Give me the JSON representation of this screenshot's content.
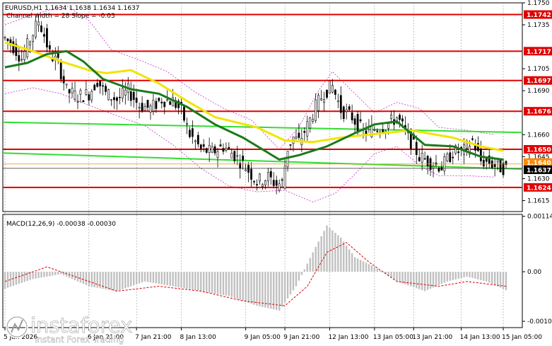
{
  "header": {
    "symbol_line": "EURUSD,H1  1.1634 1.1638 1.1634 1.1637",
    "channel_line": "Channel width = 28 Slope = -0.03"
  },
  "macd": {
    "label": "MACD(12,26,9) -0.00038 -0.00030",
    "ticks": [
      "0.00114",
      "0.00",
      "-0.00102"
    ]
  },
  "watermark": {
    "brand": "instaforex",
    "tagline": "Instant Forex Trading"
  },
  "colors": {
    "background": "#ffffff",
    "candle": "#000000",
    "level_line": "#e00000",
    "ma_yellow": "#f2e400",
    "ma_green": "#1a7a1a",
    "channel": "#33dd33",
    "bollinger": "#cc44cc",
    "macd_hist": "#c0c0c0",
    "macd_signal": "#dd0000",
    "current_price_label": "#000000"
  },
  "chart_data": {
    "type": "candlestick",
    "symbol": "EURUSD",
    "timeframe": "H1",
    "price_axis": {
      "ylim": [
        1.16075,
        1.175
      ],
      "ticks": [
        "1.1750",
        "1.1735",
        "1.1705",
        "1.1690",
        "1.1660",
        "1.1645",
        "1.1630",
        "1.1615"
      ]
    },
    "time_labels": [
      "5 Jan 2026",
      "6 Jan 21:00",
      "7 Jan 21:00",
      "8 Jan 13:00",
      "9 Jan 05:00",
      "9 Jan 21:00",
      "12 Jan 13:00",
      "13 Jan 05:00",
      "13 Jan 21:00",
      "14 Jan 13:00",
      "15 Jan 05:00"
    ],
    "time_label_index": [
      0,
      30,
      47,
      63,
      86,
      100,
      116,
      132,
      146,
      163,
      178
    ],
    "bar_count": 180,
    "levels": [
      {
        "label": "1.1742",
        "value": 1.1742
      },
      {
        "label": "1.1717",
        "value": 1.1717
      },
      {
        "label": "1.1697",
        "value": 1.1697
      },
      {
        "label": "1.1676",
        "value": 1.1676
      },
      {
        "label": "1.1650",
        "value": 1.165
      },
      {
        "label": "1.1624",
        "value": 1.1624
      }
    ],
    "price_tags": [
      {
        "label": "1.1640",
        "value": 1.164,
        "color": "#ff8a00"
      },
      {
        "label": "1.1637",
        "value": 1.1637,
        "color": "#000000"
      }
    ],
    "current_price": 1.1637,
    "channel_lines": [
      {
        "start": 1.16685,
        "end": 1.16615
      },
      {
        "start": 1.16475,
        "end": 1.16365
      }
    ],
    "ma_yellow_path": [
      [
        0,
        1.1723
      ],
      [
        10,
        1.1717
      ],
      [
        20,
        1.171
      ],
      [
        30,
        1.1704
      ],
      [
        36,
        1.1702
      ],
      [
        45,
        1.1704
      ],
      [
        55,
        1.1695
      ],
      [
        65,
        1.1683
      ],
      [
        75,
        1.1672
      ],
      [
        90,
        1.1665
      ],
      [
        100,
        1.1656
      ],
      [
        110,
        1.1655
      ],
      [
        120,
        1.1658
      ],
      [
        135,
        1.1661
      ],
      [
        145,
        1.1663
      ],
      [
        160,
        1.1658
      ],
      [
        170,
        1.1652
      ],
      [
        178,
        1.1649
      ]
    ],
    "ma_green_path": [
      [
        0,
        1.1706
      ],
      [
        8,
        1.1709
      ],
      [
        15,
        1.1715
      ],
      [
        22,
        1.1717
      ],
      [
        28,
        1.171
      ],
      [
        35,
        1.1698
      ],
      [
        45,
        1.1691
      ],
      [
        55,
        1.1688
      ],
      [
        65,
        1.1679
      ],
      [
        75,
        1.1667
      ],
      [
        85,
        1.1658
      ],
      [
        98,
        1.1643
      ],
      [
        105,
        1.1646
      ],
      [
        115,
        1.1652
      ],
      [
        125,
        1.1661
      ],
      [
        132,
        1.1667
      ],
      [
        140,
        1.1669
      ],
      [
        145,
        1.1661
      ],
      [
        150,
        1.1653
      ],
      [
        160,
        1.1652
      ],
      [
        170,
        1.1645
      ],
      [
        178,
        1.1643
      ]
    ],
    "bb_upper_path": [
      [
        0,
        1.1735
      ],
      [
        10,
        1.1742
      ],
      [
        22,
        1.1748
      ],
      [
        30,
        1.1738
      ],
      [
        38,
        1.1718
      ],
      [
        48,
        1.1711
      ],
      [
        58,
        1.1703
      ],
      [
        68,
        1.1689
      ],
      [
        78,
        1.1678
      ],
      [
        88,
        1.167
      ],
      [
        98,
        1.165
      ],
      [
        105,
        1.1665
      ],
      [
        112,
        1.169
      ],
      [
        117,
        1.1703
      ],
      [
        125,
        1.1688
      ],
      [
        132,
        1.1675
      ],
      [
        140,
        1.1682
      ],
      [
        148,
        1.1678
      ],
      [
        155,
        1.1665
      ],
      [
        165,
        1.1663
      ],
      [
        175,
        1.166
      ]
    ],
    "bb_lower_path": [
      [
        0,
        1.1688
      ],
      [
        10,
        1.1692
      ],
      [
        20,
        1.1688
      ],
      [
        30,
        1.168
      ],
      [
        40,
        1.1673
      ],
      [
        50,
        1.1666
      ],
      [
        60,
        1.1653
      ],
      [
        70,
        1.1637
      ],
      [
        80,
        1.1625
      ],
      [
        90,
        1.1621
      ],
      [
        100,
        1.1622
      ],
      [
        110,
        1.1614
      ],
      [
        118,
        1.162
      ],
      [
        125,
        1.1633
      ],
      [
        132,
        1.1647
      ],
      [
        140,
        1.1652
      ],
      [
        148,
        1.1639
      ],
      [
        155,
        1.1632
      ],
      [
        165,
        1.1632
      ],
      [
        175,
        1.1631
      ]
    ],
    "close_path": [
      [
        0,
        1.1726
      ],
      [
        3,
        1.172
      ],
      [
        6,
        1.1712
      ],
      [
        9,
        1.1725
      ],
      [
        12,
        1.1738
      ],
      [
        14,
        1.1728
      ],
      [
        16,
        1.1715
      ],
      [
        19,
        1.1709
      ],
      [
        22,
        1.169
      ],
      [
        26,
        1.1686
      ],
      [
        30,
        1.1688
      ],
      [
        33,
        1.1697
      ],
      [
        36,
        1.1688
      ],
      [
        40,
        1.1684
      ],
      [
        44,
        1.169
      ],
      [
        48,
        1.168
      ],
      [
        52,
        1.1678
      ],
      [
        56,
        1.1684
      ],
      [
        60,
        1.1683
      ],
      [
        63,
        1.1676
      ],
      [
        66,
        1.166
      ],
      [
        70,
        1.165
      ],
      [
        74,
        1.1648
      ],
      [
        78,
        1.1652
      ],
      [
        82,
        1.1646
      ],
      [
        86,
        1.1638
      ],
      [
        90,
        1.1628
      ],
      [
        94,
        1.1631
      ],
      [
        97,
        1.1626
      ],
      [
        99,
        1.1627
      ],
      [
        101,
        1.1651
      ],
      [
        103,
        1.1658
      ],
      [
        105,
        1.1655
      ],
      [
        108,
        1.1666
      ],
      [
        111,
        1.1679
      ],
      [
        114,
        1.1689
      ],
      [
        117,
        1.1693
      ],
      [
        120,
        1.1677
      ],
      [
        124,
        1.1672
      ],
      [
        128,
        1.1662
      ],
      [
        132,
        1.1664
      ],
      [
        136,
        1.1666
      ],
      [
        140,
        1.1672
      ],
      [
        144,
        1.1659
      ],
      [
        148,
        1.1645
      ],
      [
        152,
        1.1641
      ],
      [
        156,
        1.1638
      ],
      [
        160,
        1.1648
      ],
      [
        164,
        1.1649
      ],
      [
        167,
        1.1656
      ],
      [
        170,
        1.1642
      ],
      [
        173,
        1.1641
      ],
      [
        176,
        1.1638
      ],
      [
        179,
        1.1637
      ]
    ],
    "macd_path": [
      [
        0,
        -0.00035
      ],
      [
        10,
        -0.00015
      ],
      [
        20,
        -5e-05
      ],
      [
        30,
        -0.0003
      ],
      [
        40,
        -0.0004
      ],
      [
        50,
        -0.0002
      ],
      [
        60,
        -0.0003
      ],
      [
        70,
        -0.0004
      ],
      [
        80,
        -0.0005
      ],
      [
        90,
        -0.0007
      ],
      [
        98,
        -0.0008
      ],
      [
        104,
        -0.0003
      ],
      [
        110,
        0.0004
      ],
      [
        115,
        0.00095
      ],
      [
        120,
        0.0007
      ],
      [
        125,
        0.0003
      ],
      [
        132,
        0.0001
      ],
      [
        140,
        -0.0002
      ],
      [
        150,
        -0.0004
      ],
      [
        158,
        -0.0002
      ],
      [
        165,
        -0.0001
      ],
      [
        172,
        -0.0002
      ],
      [
        179,
        -0.00038
      ]
    ],
    "macd_signal_path": [
      [
        0,
        -0.0002
      ],
      [
        15,
        0.0001
      ],
      [
        25,
        -0.0001
      ],
      [
        40,
        -0.0004
      ],
      [
        55,
        -0.0003
      ],
      [
        70,
        -0.0004
      ],
      [
        85,
        -0.0006
      ],
      [
        100,
        -0.0007
      ],
      [
        108,
        -0.0003
      ],
      [
        115,
        0.0004
      ],
      [
        122,
        0.0006
      ],
      [
        130,
        0.0002
      ],
      [
        140,
        -0.0002
      ],
      [
        155,
        -0.0003
      ],
      [
        165,
        -0.0002
      ],
      [
        179,
        -0.0003
      ]
    ],
    "macd_ylim": [
      -0.00115,
      0.00118
    ]
  }
}
